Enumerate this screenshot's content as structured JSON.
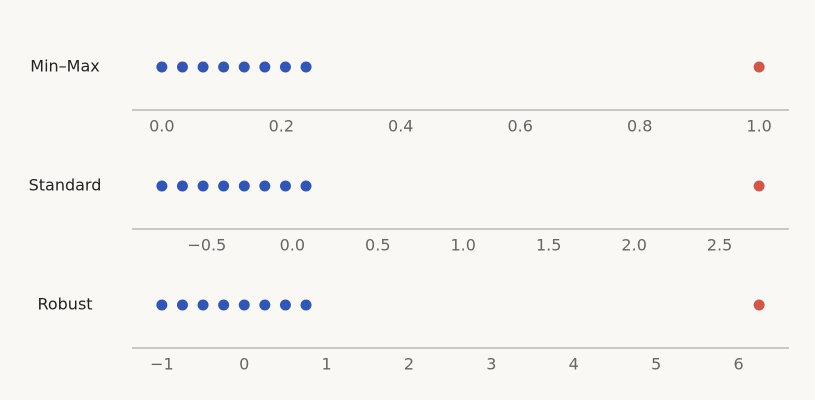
{
  "chart_data": [
    {
      "type": "strip",
      "label": "Min–Max",
      "series": [
        {
          "color": "#3456b3",
          "x": [
            0,
            0.0345,
            0.069,
            0.1034,
            0.1379,
            0.1724,
            0.2069,
            0.2414
          ]
        },
        {
          "color": "#d0584a",
          "x": [
            1.0
          ]
        }
      ],
      "xlim": [
        -0.05,
        1.05
      ],
      "xticks": [
        {
          "value": 0,
          "label": "0.0"
        },
        0.2,
        0.4,
        0.6,
        0.8,
        {
          "value": 1,
          "label": "1.0"
        }
      ]
    },
    {
      "type": "strip",
      "label": "Standard",
      "series": [
        {
          "color": "#3456b3",
          "x": [
            -0.763,
            -0.643,
            -0.522,
            -0.402,
            -0.281,
            -0.161,
            -0.04,
            0.08
          ]
        },
        {
          "color": "#d0584a",
          "x": [
            2.731
          ]
        }
      ],
      "xlim": [
        -0.938,
        2.906
      ],
      "xticks": [
        {
          "value": -0.5,
          "label": "−0.5"
        },
        {
          "value": 0,
          "label": "0.0"
        },
        0.5,
        {
          "value": 1,
          "label": "1.0"
        },
        1.5,
        {
          "value": 2,
          "label": "2.0"
        },
        2.5
      ]
    },
    {
      "type": "strip",
      "label": "Robust",
      "series": [
        {
          "color": "#3456b3",
          "x": [
            -1,
            -0.75,
            -0.5,
            -0.25,
            0,
            0.25,
            0.5,
            0.75
          ]
        },
        {
          "color": "#d0584a",
          "x": [
            6.25
          ]
        }
      ],
      "xlim": [
        -1.3625,
        6.6125
      ],
      "xticks": [
        {
          "value": -1,
          "label": "−1"
        },
        0,
        1,
        2,
        3,
        4,
        5,
        6
      ]
    }
  ]
}
